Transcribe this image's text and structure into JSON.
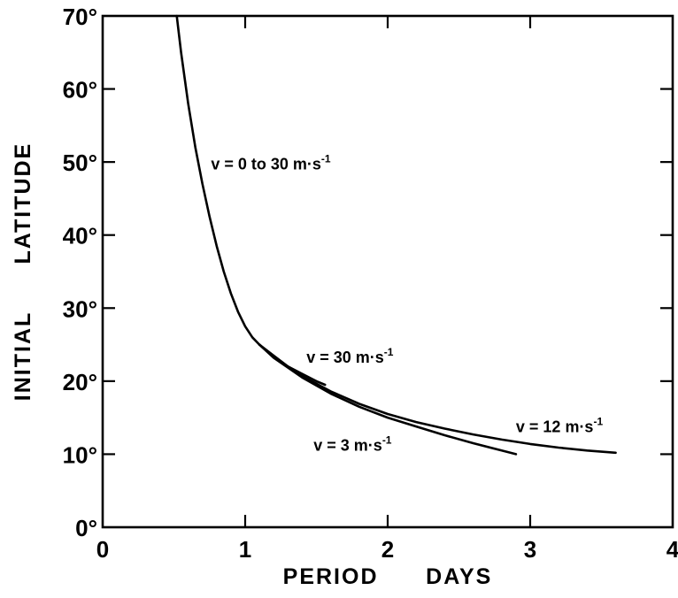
{
  "chart_data": {
    "type": "line",
    "title": "",
    "xlabel": "PERIOD      DAYS",
    "ylabel": "INITIAL      LATITUDE",
    "xlim": [
      0,
      4
    ],
    "ylim": [
      0,
      70
    ],
    "x_ticks": [
      "0",
      "1",
      "2",
      "3",
      "4"
    ],
    "y_ticks": [
      "0°",
      "10°",
      "20°",
      "30°",
      "40°",
      "50°",
      "60°",
      "70°"
    ],
    "grid": false,
    "series": [
      {
        "name": "v = 0 to 30 m·s-1",
        "x": [
          0.52,
          0.55,
          0.6,
          0.65,
          0.7,
          0.75,
          0.8,
          0.85,
          0.9,
          0.95,
          1.0,
          1.05,
          1.1
        ],
        "y": [
          70,
          65,
          58,
          52,
          47,
          42.5,
          38.5,
          35,
          32,
          29.5,
          27.5,
          26,
          25
        ]
      },
      {
        "name": "v = 30 m·s-1",
        "x": [
          1.1,
          1.2,
          1.3,
          1.4,
          1.5,
          1.56
        ],
        "y": [
          25,
          23.5,
          22,
          21,
          20,
          19.5
        ]
      },
      {
        "name": "v = 3 m·s-1",
        "x": [
          1.1,
          1.2,
          1.4,
          1.6,
          1.8,
          2.0,
          2.2,
          2.4,
          2.6,
          2.8,
          2.9
        ],
        "y": [
          25,
          23.2,
          20.5,
          18.3,
          16.5,
          15,
          13.8,
          12.6,
          11.5,
          10.5,
          10
        ]
      },
      {
        "name": "v = 12 m·s-1",
        "x": [
          1.1,
          1.2,
          1.4,
          1.6,
          1.8,
          2.0,
          2.2,
          2.4,
          2.6,
          2.8,
          3.0,
          3.2,
          3.4,
          3.6
        ],
        "y": [
          25,
          23.3,
          20.7,
          18.6,
          16.9,
          15.5,
          14.4,
          13.5,
          12.7,
          12.0,
          11.4,
          10.9,
          10.5,
          10.2
        ]
      }
    ],
    "annotations": [
      {
        "base": "v =  0 to 30  m·s",
        "sup": "-1",
        "x": 0.76,
        "y": 49
      },
      {
        "base": "v = 30  m·s",
        "sup": "-1",
        "x": 1.43,
        "y": 22.5
      },
      {
        "base": "v = 3  m·s",
        "sup": "-1",
        "x": 1.48,
        "y": 10.5
      },
      {
        "base": "v = 12  m·s",
        "sup": "-1",
        "x": 2.9,
        "y": 13
      }
    ]
  }
}
